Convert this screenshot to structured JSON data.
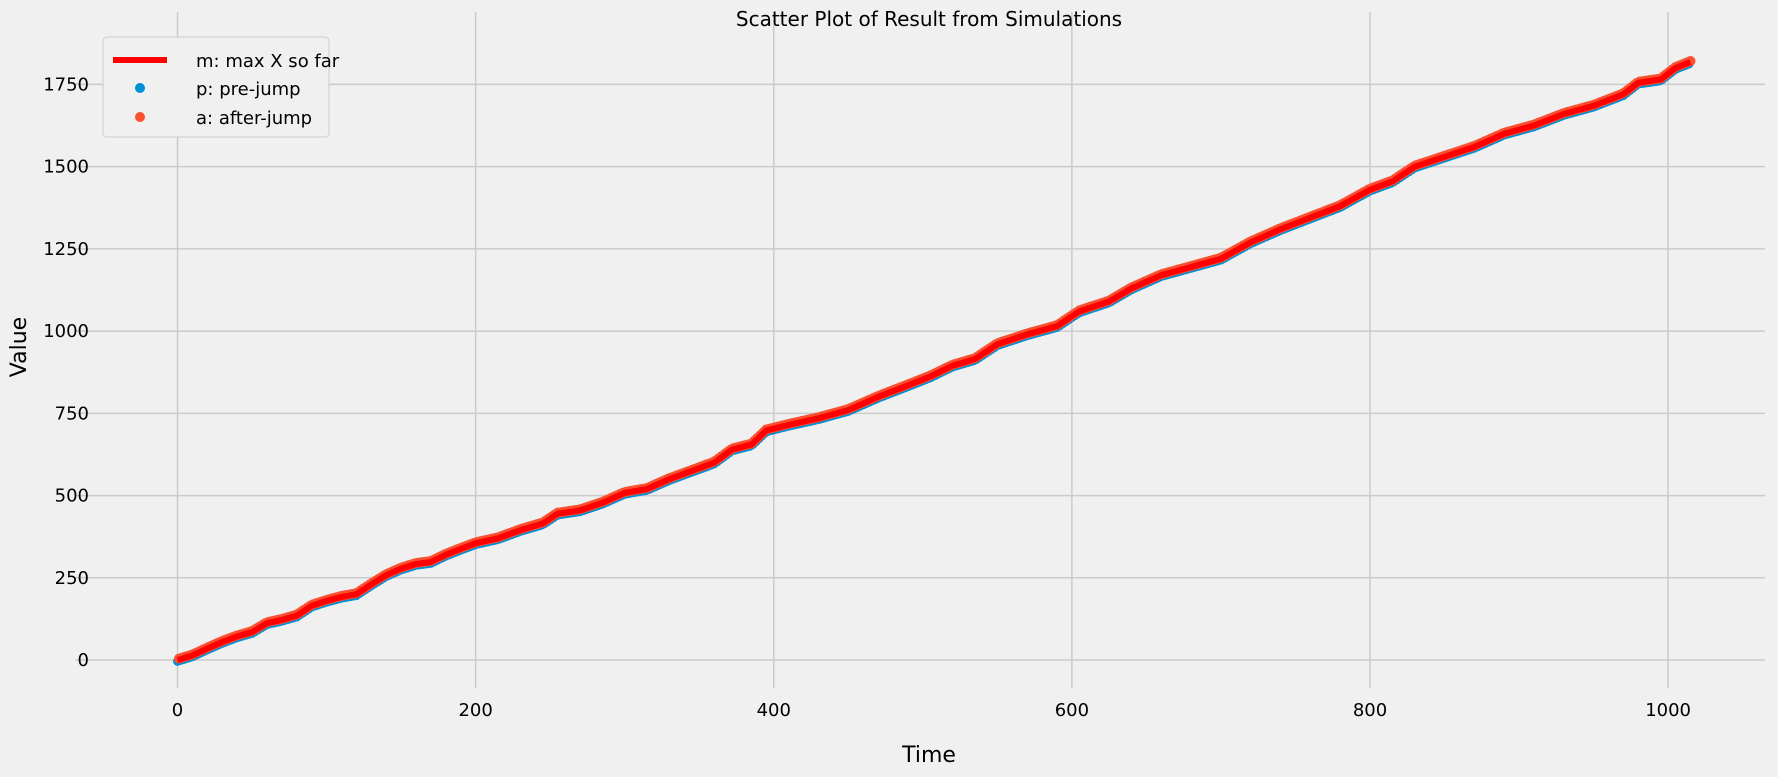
{
  "chart_data": {
    "type": "scatter",
    "title": "Scatter Plot of Result from Simulations",
    "xlabel": "Time",
    "ylabel": "Value",
    "xlim": [
      -50,
      1065
    ],
    "ylim": [
      -85,
      1885
    ],
    "x_ticks": [
      0,
      200,
      400,
      600,
      800,
      1000
    ],
    "y_ticks": [
      0,
      250,
      500,
      750,
      1000,
      1250,
      1500,
      1750
    ],
    "grid": true,
    "legend_placement": "top-left",
    "series": [
      {
        "name": "m: max X so far",
        "kind": "line",
        "color": "#ff0000"
      },
      {
        "name": "p: pre-jump",
        "kind": "scatter",
        "color": "#008fd5"
      },
      {
        "name": "a: after-jump",
        "kind": "scatter",
        "color": "#fc4f30"
      }
    ],
    "trend_points": [
      [
        0,
        0
      ],
      [
        10,
        14
      ],
      [
        20,
        35
      ],
      [
        30,
        55
      ],
      [
        40,
        72
      ],
      [
        50,
        85
      ],
      [
        60,
        112
      ],
      [
        70,
        122
      ],
      [
        80,
        135
      ],
      [
        90,
        165
      ],
      [
        100,
        180
      ],
      [
        110,
        192
      ],
      [
        120,
        200
      ],
      [
        130,
        230
      ],
      [
        140,
        258
      ],
      [
        150,
        278
      ],
      [
        160,
        292
      ],
      [
        170,
        298
      ],
      [
        180,
        320
      ],
      [
        190,
        338
      ],
      [
        200,
        355
      ],
      [
        215,
        370
      ],
      [
        230,
        395
      ],
      [
        245,
        415
      ],
      [
        255,
        445
      ],
      [
        270,
        455
      ],
      [
        285,
        478
      ],
      [
        300,
        508
      ],
      [
        315,
        520
      ],
      [
        330,
        550
      ],
      [
        345,
        575
      ],
      [
        360,
        600
      ],
      [
        372,
        640
      ],
      [
        385,
        655
      ],
      [
        395,
        698
      ],
      [
        410,
        715
      ],
      [
        430,
        735
      ],
      [
        450,
        760
      ],
      [
        470,
        800
      ],
      [
        490,
        835
      ],
      [
        505,
        862
      ],
      [
        520,
        895
      ],
      [
        535,
        915
      ],
      [
        550,
        960
      ],
      [
        570,
        990
      ],
      [
        590,
        1015
      ],
      [
        605,
        1060
      ],
      [
        625,
        1090
      ],
      [
        640,
        1130
      ],
      [
        660,
        1170
      ],
      [
        680,
        1195
      ],
      [
        700,
        1220
      ],
      [
        720,
        1270
      ],
      [
        740,
        1310
      ],
      [
        760,
        1345
      ],
      [
        780,
        1380
      ],
      [
        800,
        1430
      ],
      [
        815,
        1455
      ],
      [
        830,
        1500
      ],
      [
        850,
        1530
      ],
      [
        870,
        1560
      ],
      [
        890,
        1600
      ],
      [
        910,
        1625
      ],
      [
        930,
        1660
      ],
      [
        950,
        1685
      ],
      [
        970,
        1720
      ],
      [
        980,
        1755
      ],
      [
        995,
        1765
      ],
      [
        1005,
        1800
      ],
      [
        1015,
        1818
      ]
    ]
  }
}
